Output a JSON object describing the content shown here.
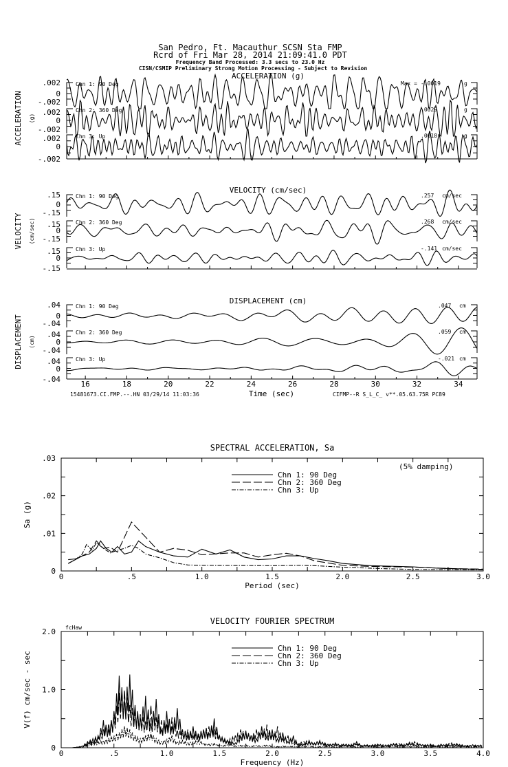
{
  "header": {
    "line1": "San Pedro, Ft. Macauthur    SCSN Sta FMP",
    "line2": "Rcrd of Fri Mar 28, 2014 21:09:41.0 PDT",
    "line3": "Frequency Band Processed: 3.3 secs to 23.0 Hz",
    "line4": "CISN/CSMIP Preliminary Strong Motion Processing - Subject to Revision"
  },
  "time_series": {
    "xlabel": "Time (sec)",
    "xticks": [
      "16",
      "18",
      "20",
      "22",
      "24",
      "26",
      "28",
      "30",
      "32",
      "34"
    ],
    "xlim": [
      15.1,
      34.9
    ],
    "footer_left": "15481673.CI.FMP.--.HN 03/29/14 11:03:36",
    "footer_right": "CIFMP--R  S_L_C_  v**.05.63.75R PC89",
    "max_prefix": "Max =",
    "sections": [
      {
        "title": "ACCELERATION (g)",
        "ylabel": "ACCELERATION",
        "yunit": "(g)",
        "unit": "g",
        "yticks": [
          ".002",
          "0",
          "-.002"
        ],
        "ylim": [
          -0.002,
          0.002
        ],
        "channels": [
          {
            "name": "Chn 1: 90 Deg",
            "max": "-.0019"
          },
          {
            "name": "Chn 2: 360 Deg",
            "max": ".0029"
          },
          {
            "name": "Chn 3: Up",
            "max": ".0018"
          }
        ]
      },
      {
        "title": "VELOCITY (cm/sec)",
        "ylabel": "VELOCITY",
        "yunit": "(cm/sec)",
        "unit": "cm/sec",
        "yticks": [
          ".15",
          "0",
          "-.15"
        ],
        "ylim": [
          -0.15,
          0.15
        ],
        "channels": [
          {
            "name": "Chn 1: 90 Deg",
            "max": ".257"
          },
          {
            "name": "Chn 2: 360 Deg",
            "max": ".268"
          },
          {
            "name": "Chn 3: Up",
            "max": "-.141"
          }
        ]
      },
      {
        "title": "DISPLACEMENT (cm)",
        "ylabel": "DISPLACEMENT",
        "yunit": "(cm)",
        "unit": "cm",
        "yticks": [
          ".04",
          "0",
          "-.04"
        ],
        "ylim": [
          -0.04,
          0.04
        ],
        "channels": [
          {
            "name": "Chn 1: 90 Deg",
            "max": ".047"
          },
          {
            "name": "Chn 2: 360 Deg",
            "max": ".059"
          },
          {
            "name": "Chn 3: Up",
            "max": "-.021"
          }
        ]
      }
    ]
  },
  "chart_data": [
    {
      "type": "line",
      "title": "SPECTRAL ACCELERATION, Sa",
      "annotation": "(5% damping)",
      "xlabel": "Period (sec)",
      "ylabel": "Sa (g)",
      "xlim": [
        0,
        3.0
      ],
      "ylim": [
        0,
        0.03
      ],
      "xticks": [
        "0",
        ".5",
        "1.0",
        "1.5",
        "2.0",
        "2.5",
        "3.0"
      ],
      "yticks": [
        "0",
        ".01",
        ".02",
        ".03"
      ],
      "series": [
        {
          "name": "Chn 1: 90 Deg",
          "style": "solid",
          "x": [
            0.05,
            0.1,
            0.15,
            0.2,
            0.25,
            0.28,
            0.32,
            0.36,
            0.4,
            0.45,
            0.5,
            0.55,
            0.6,
            0.7,
            0.8,
            0.9,
            1.0,
            1.1,
            1.2,
            1.3,
            1.4,
            1.5,
            1.6,
            1.7,
            1.8,
            1.9,
            2.0,
            2.2,
            2.5,
            2.7,
            3.0
          ],
          "y": [
            0.002,
            0.003,
            0.004,
            0.0045,
            0.006,
            0.008,
            0.006,
            0.005,
            0.0065,
            0.0045,
            0.005,
            0.008,
            0.0065,
            0.005,
            0.004,
            0.0037,
            0.0058,
            0.0045,
            0.0056,
            0.0037,
            0.003,
            0.0032,
            0.004,
            0.004,
            0.0033,
            0.0027,
            0.002,
            0.0014,
            0.0011,
            0.0007,
            0.0004
          ]
        },
        {
          "name": "Chn 2: 360 Deg",
          "style": "dashed",
          "x": [
            0.05,
            0.1,
            0.15,
            0.2,
            0.25,
            0.3,
            0.35,
            0.4,
            0.45,
            0.5,
            0.55,
            0.6,
            0.7,
            0.8,
            0.9,
            1.0,
            1.2,
            1.3,
            1.4,
            1.5,
            1.6,
            1.7,
            1.8,
            2.0,
            2.2,
            2.5,
            2.8,
            3.0
          ],
          "y": [
            0.003,
            0.0032,
            0.004,
            0.005,
            0.008,
            0.006,
            0.0063,
            0.005,
            0.009,
            0.013,
            0.011,
            0.009,
            0.005,
            0.006,
            0.0055,
            0.0043,
            0.0048,
            0.0048,
            0.0037,
            0.0043,
            0.0047,
            0.004,
            0.0027,
            0.0015,
            0.0012,
            0.001,
            0.0006,
            0.0005
          ]
        },
        {
          "name": "Chn 3: Up",
          "style": "dashdot",
          "x": [
            0.05,
            0.1,
            0.15,
            0.18,
            0.22,
            0.25,
            0.3,
            0.35,
            0.4,
            0.45,
            0.5,
            0.55,
            0.6,
            0.7,
            0.8,
            0.9,
            1.0,
            1.5,
            1.7,
            1.8,
            2.0,
            2.3,
            2.5,
            3.0
          ],
          "y": [
            0.002,
            0.003,
            0.0045,
            0.007,
            0.0055,
            0.0075,
            0.006,
            0.0048,
            0.0055,
            0.006,
            0.0068,
            0.006,
            0.0045,
            0.0035,
            0.0022,
            0.0016,
            0.0015,
            0.0014,
            0.0015,
            0.0014,
            0.001,
            0.0006,
            0.0004,
            0.0003
          ]
        }
      ]
    },
    {
      "type": "line",
      "title": "VELOCITY FOURIER SPECTRUM",
      "annotation": "fcHaw",
      "xlabel": "Frequency (Hz)",
      "ylabel": "V(f)   cm/sec - sec",
      "xlim": [
        0,
        4.0
      ],
      "ylim": [
        0,
        2.0
      ],
      "xticks": [
        "0",
        ".5",
        "1.0",
        "1.5",
        "2.0",
        "2.5",
        "3.0",
        "3.5",
        "4.0"
      ],
      "yticks": [
        "0",
        "1.0",
        "2.0"
      ],
      "x_step": 0.05,
      "series": [
        {
          "name": "Chn 1: 90 Deg",
          "style": "solid",
          "y": [
            0,
            0,
            0,
            0.01,
            0.03,
            0.1,
            0.15,
            0.2,
            0.45,
            0.3,
            0.6,
            1.18,
            0.8,
            1.2,
            0.7,
            0.5,
            0.85,
            0.4,
            0.8,
            0.3,
            0.6,
            0.35,
            0.65,
            0.3,
            0.2,
            0.35,
            0.2,
            0.3,
            0.25,
            0.48,
            0.2,
            0.15,
            0.1,
            0.08,
            0.2,
            0.28,
            0.2,
            0.15,
            0.35,
            0.2,
            0.3,
            0.15,
            0.25,
            0.1,
            0.2,
            0.05,
            0.06,
            0.1,
            0.08,
            0.12,
            0.06,
            0.05,
            0.08,
            0.04,
            0.06,
            0.05,
            0.1,
            0.04,
            0.05,
            0.03,
            0.06,
            0.04,
            0.05,
            0.07,
            0.04,
            0.05,
            0.09,
            0.05,
            0.06,
            0.04,
            0.05,
            0.03,
            0.06,
            0.04,
            0.05,
            0.07,
            0.04,
            0.03,
            0.05,
            0.04,
            0.05
          ]
        },
        {
          "name": "Chn 2: 360 Deg",
          "style": "dashed",
          "y": [
            0,
            0,
            0,
            0.01,
            0.02,
            0.08,
            0.12,
            0.18,
            0.3,
            0.4,
            0.5,
            0.9,
            0.95,
            0.7,
            0.6,
            0.55,
            0.45,
            0.7,
            0.5,
            0.45,
            0.4,
            0.5,
            0.3,
            0.25,
            0.3,
            0.2,
            0.25,
            0.3,
            0.35,
            0.3,
            0.2,
            0.12,
            0.15,
            0.2,
            0.3,
            0.25,
            0.2,
            0.3,
            0.25,
            0.38,
            0.2,
            0.35,
            0.15,
            0.2,
            0.1,
            0.08,
            0.1,
            0.12,
            0.07,
            0.1,
            0.08,
            0.06,
            0.05,
            0.07,
            0.05,
            0.04,
            0.06,
            0.05,
            0.04,
            0.05,
            0.06,
            0.05,
            0.04,
            0.06,
            0.08,
            0.05,
            0.07,
            0.1,
            0.06,
            0.05,
            0.06,
            0.04,
            0.05,
            0.06,
            0.08,
            0.04,
            0.05,
            0.04,
            0.03,
            0.04,
            0.05
          ]
        },
        {
          "name": "Chn 3: Up",
          "style": "dashdot",
          "y": [
            0,
            0,
            0,
            0,
            0.01,
            0.05,
            0.08,
            0.1,
            0.12,
            0.15,
            0.2,
            0.25,
            0.35,
            0.3,
            0.2,
            0.15,
            0.2,
            0.25,
            0.15,
            0.1,
            0.15,
            0.2,
            0.1,
            0.12,
            0.08,
            0.1,
            0.12,
            0.08,
            0.06,
            0.07,
            0.05,
            0.04,
            0.06,
            0.03,
            0.04,
            0.05,
            0.03,
            0.04,
            0.03,
            0.05,
            0.03,
            0.02,
            0.03,
            0.02,
            0.03,
            0.02,
            0.02,
            0.03,
            0.02,
            0.02,
            0.03,
            0.02,
            0.02,
            0.02,
            0.03,
            0.02,
            0.02,
            0.02,
            0.03,
            0.02,
            0.02,
            0.02,
            0.02,
            0.03,
            0.02,
            0.02,
            0.02,
            0.02,
            0.02,
            0.02,
            0.02,
            0.02,
            0.02,
            0.02,
            0.02,
            0.02,
            0.02,
            0.02,
            0.02,
            0.02,
            0.02
          ]
        }
      ]
    }
  ]
}
